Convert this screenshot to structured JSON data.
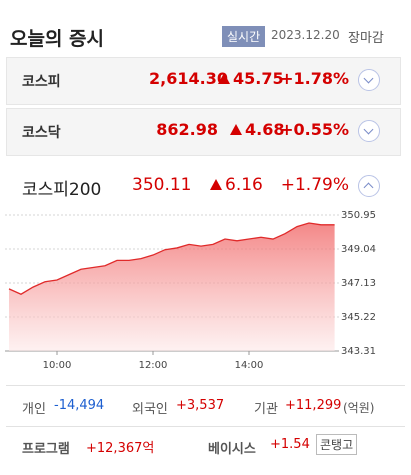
{
  "header": {
    "title": "오늘의 증시",
    "badge": "실시간",
    "date": "2023.12.20",
    "status": "장마감"
  },
  "indices": [
    {
      "name": "코스피",
      "value": "2,614.30",
      "change": "45.75",
      "rate": "+1.78%"
    },
    {
      "name": "코스닥",
      "value": "862.98",
      "change": "4.68",
      "rate": "+0.55%"
    },
    {
      "name": "코스피200",
      "value": "350.11",
      "change": "6.16",
      "rate": "+1.79%"
    }
  ],
  "chart": {
    "type": "area",
    "color": "#e02a2a",
    "x": [
      540,
      555,
      570,
      585,
      600,
      615,
      630,
      645,
      660,
      675,
      690,
      705,
      720,
      735,
      750,
      765,
      780,
      795,
      810,
      825,
      840,
      855,
      870,
      885,
      900,
      915,
      930,
      947
    ],
    "values": [
      346.8,
      346.5,
      346.9,
      347.2,
      347.3,
      347.6,
      347.9,
      348.0,
      348.1,
      348.4,
      348.4,
      348.5,
      348.7,
      349.0,
      349.1,
      349.3,
      349.2,
      349.3,
      349.6,
      349.5,
      349.6,
      349.7,
      349.6,
      349.9,
      350.3,
      350.5,
      350.4,
      350.4
    ],
    "xlim": [
      540,
      950
    ],
    "xticks": [
      {
        "value": 600,
        "label": "10:00"
      },
      {
        "value": 720,
        "label": "12:00"
      },
      {
        "value": 840,
        "label": "14:00"
      }
    ],
    "ylim": [
      343.31,
      350.95
    ],
    "yticks": [
      350.95,
      349.04,
      347.13,
      345.22,
      343.31
    ],
    "grid": true
  },
  "investors": [
    {
      "label": "개인",
      "value": "-14,494"
    },
    {
      "label": "외국인",
      "value": "+3,537"
    },
    {
      "label": "기관",
      "value": "+11,299"
    }
  ],
  "unit": "(억원)",
  "program": {
    "label": "프로그램",
    "value": "+12,367억"
  },
  "basis": {
    "label": "베이시스",
    "value": "+1.54",
    "tag": "콘탱고"
  }
}
